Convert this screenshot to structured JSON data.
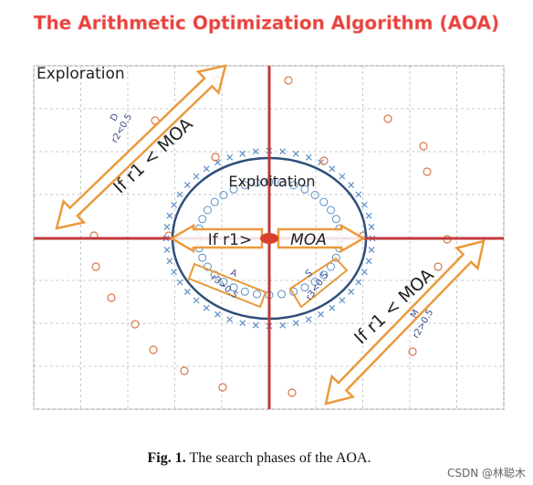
{
  "header": {
    "title": "The Arithmetic Optimization Algorithm (AOA)"
  },
  "regions": {
    "exploration": "Exploration",
    "exploitation": "Exploitation"
  },
  "arrows": {
    "exploration_top": {
      "condition": "If r1 < MOA",
      "operator": "D",
      "rule": "r2<0.5"
    },
    "exploration_bottom": {
      "condition": "If r1 < MOA",
      "operator": "M",
      "rule": "r2>0.5"
    },
    "exploitation_left": {
      "condition": "If r1>",
      "operator": "A",
      "rule": "r3>0.5"
    },
    "exploitation_right": {
      "condition": "MOA",
      "operator": "S",
      "rule": "r3<0.5"
    }
  },
  "caption": {
    "label": "Fig. 1.",
    "text": "The search phases of the AOA."
  },
  "watermark": "CSDN @林聪木"
}
